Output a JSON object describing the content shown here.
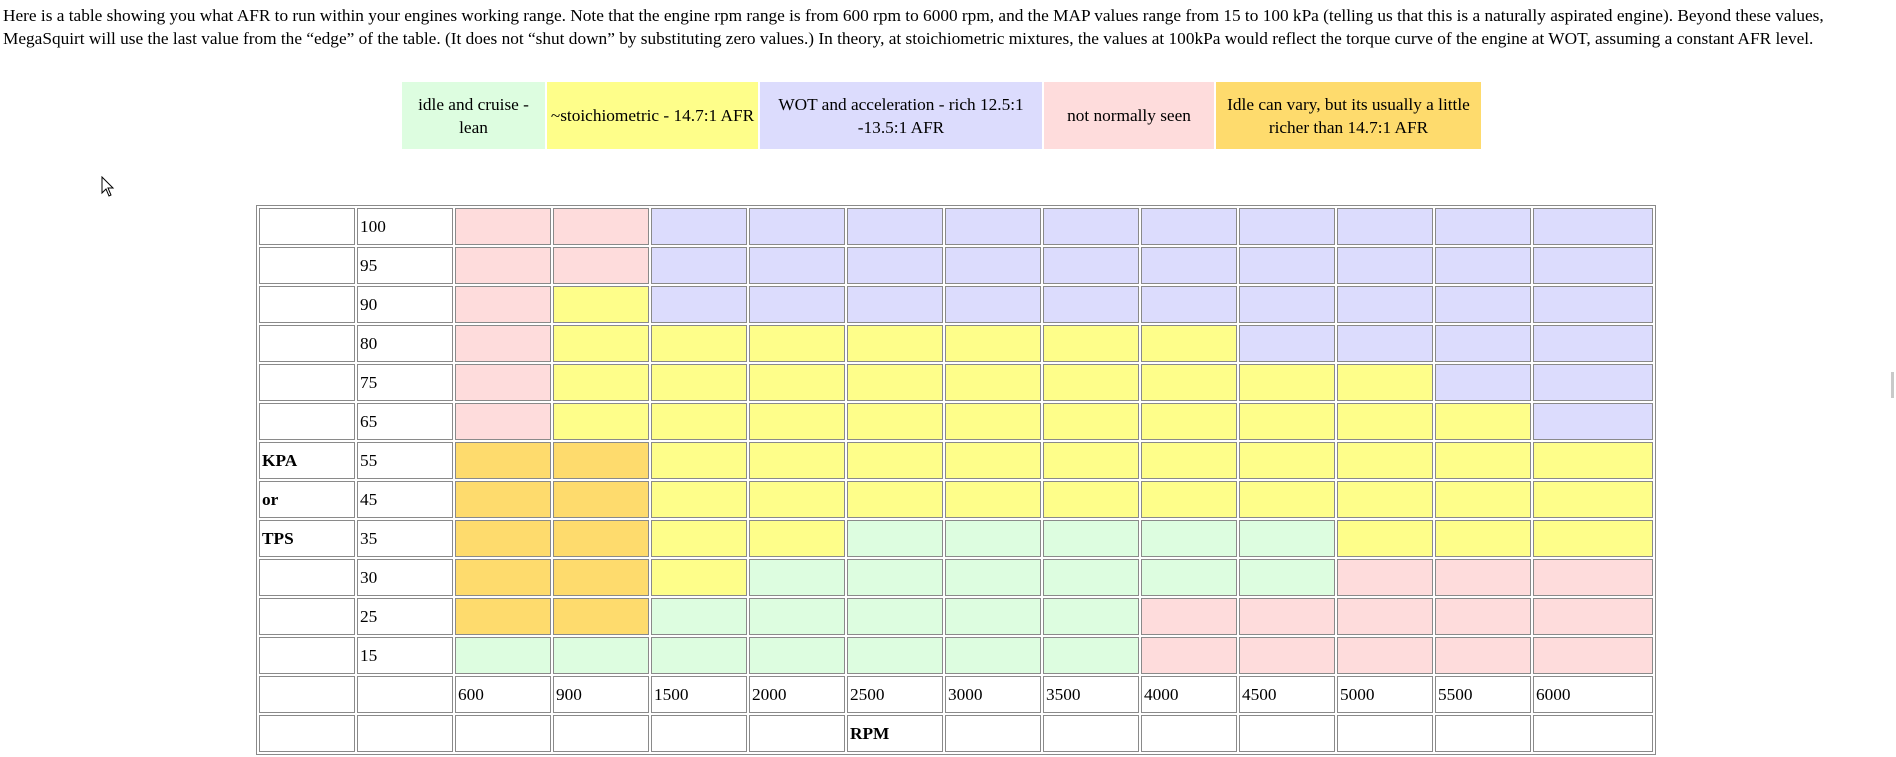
{
  "intro": "Here is a table showing you what AFR to run within your engines working range. Note that the engine rpm range is from 600 rpm to 6000 rpm, and the MAP values range from 15 to 100 kPa (telling us that this is a naturally aspirated engine). Beyond these values, MegaSquirt will use the last value from the “edge” of the table. (It does not “shut down” by substituting zero values.) In theory, at stoichiometric mixtures, the values at 100kPa would reflect the torque curve of the engine at WOT, assuming a constant AFR level.",
  "colors": {
    "L": "#ddfde0",
    "S": "#fefe8a",
    "W": "#dcdcfd",
    "N": "#fedcdc",
    "I": "#fedb6d"
  },
  "legend": [
    {
      "key": "L",
      "cls": "leg-lean",
      "text": "idle and cruise - lean"
    },
    {
      "key": "S",
      "cls": "leg-stoich",
      "text": "~stoichiometric - 14.7:1 AFR"
    },
    {
      "key": "W",
      "cls": "leg-wot",
      "text": "WOT and acceleration - rich 12.5:1 -13.5:1 AFR"
    },
    {
      "key": "N",
      "cls": "leg-nn",
      "text": "not normally seen"
    },
    {
      "key": "I",
      "cls": "leg-idle",
      "text": "Idle can vary, but its usually a little richer than 14.7:1 AFR"
    }
  ],
  "table": {
    "rows": [
      {
        "side": "",
        "kpa": "100",
        "zones": "NNWWWWWWWWWW"
      },
      {
        "side": "",
        "kpa": "95",
        "zones": "NNWWWWWWWWWW"
      },
      {
        "side": "",
        "kpa": "90",
        "zones": "NSWWWWWWWWWW"
      },
      {
        "side": "",
        "kpa": "80",
        "zones": "NSSSSSSSWWWW"
      },
      {
        "side": "",
        "kpa": "75",
        "zones": "NSSSSSSSSSWW"
      },
      {
        "side": "",
        "kpa": "65",
        "zones": "NSSSSSSSSSSW"
      },
      {
        "side": "KPA",
        "kpa": "55",
        "zones": "IISSSSSSSSSS"
      },
      {
        "side": "or",
        "kpa": "45",
        "zones": "IISSSSSSSSSS"
      },
      {
        "side": "TPS",
        "kpa": "35",
        "zones": "IISSLLLLLSSS"
      },
      {
        "side": "",
        "kpa": "30",
        "zones": "IISLLLLLLNNN"
      },
      {
        "side": "",
        "kpa": "25",
        "zones": "IILLLLLNNNNN"
      },
      {
        "side": "",
        "kpa": "15",
        "zones": "LLLLLLLNNNNN"
      }
    ],
    "rpm": [
      "600",
      "900",
      "1500",
      "2000",
      "2500",
      "3000",
      "3500",
      "4000",
      "4500",
      "5000",
      "5500",
      "6000"
    ],
    "rpm_label": "RPM"
  }
}
